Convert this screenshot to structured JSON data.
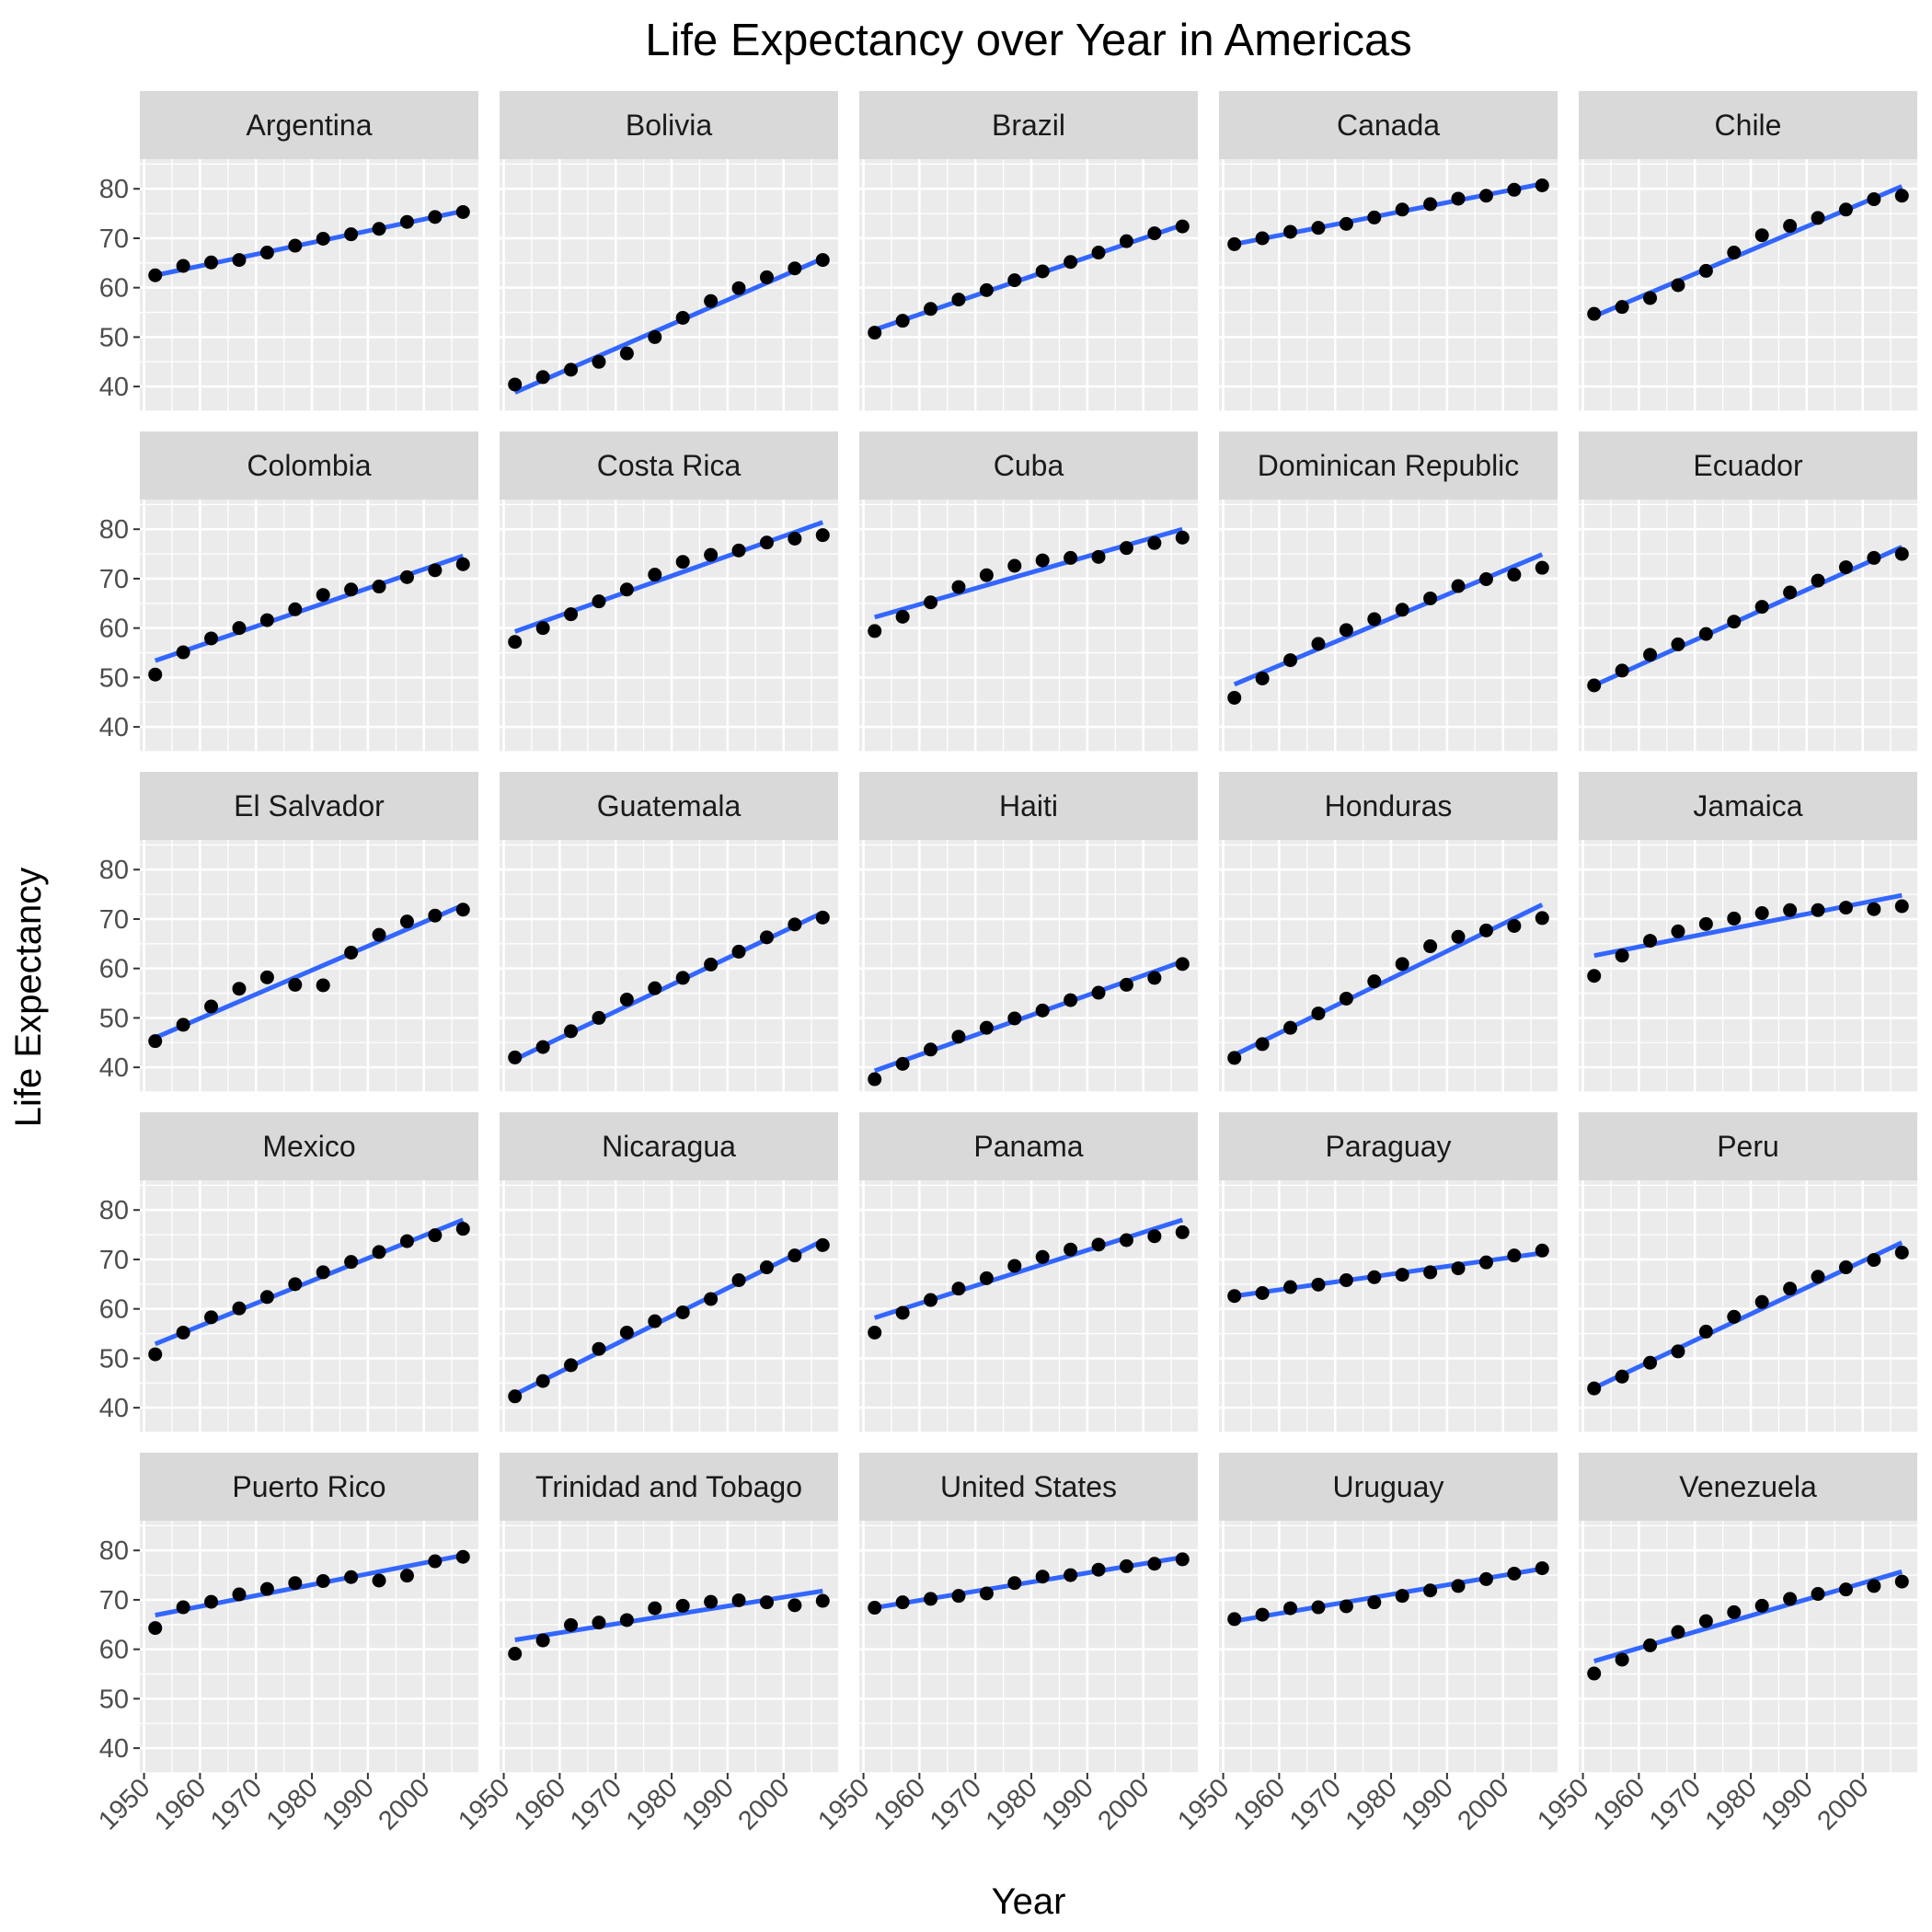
{
  "chart_data": {
    "type": "scatter",
    "title": "Life Expectancy over Year in Americas",
    "xlabel": "Year",
    "ylabel": "Life Expectancy",
    "x": [
      1952,
      1957,
      1962,
      1967,
      1972,
      1977,
      1982,
      1987,
      1992,
      1997,
      2002,
      2007
    ],
    "xlim": [
      1949.25,
      2009.75
    ],
    "ylim": [
      35,
      86
    ],
    "xticks": [
      1950,
      1960,
      1970,
      1980,
      1990,
      2000
    ],
    "yticks": [
      40,
      50,
      60,
      70,
      80
    ],
    "grid": true,
    "trend_line": "linear fit",
    "colors": {
      "points": "#000000",
      "trend": "#3366ff",
      "panel_bg": "#ebebeb",
      "strip_bg": "#d9d9d9",
      "grid": "#ffffff"
    },
    "facets": [
      {
        "name": "Argentina",
        "values": [
          62.5,
          64.4,
          65.1,
          65.6,
          67.1,
          68.5,
          69.9,
          70.8,
          71.9,
          73.3,
          74.3,
          75.3
        ],
        "trend": [
          62.5,
          75.5
        ]
      },
      {
        "name": "Bolivia",
        "values": [
          40.4,
          41.9,
          43.4,
          45.0,
          46.7,
          50.0,
          53.9,
          57.3,
          59.9,
          62.1,
          63.9,
          65.6
        ],
        "trend": [
          38.8,
          65.9
        ]
      },
      {
        "name": "Brazil",
        "values": [
          50.9,
          53.3,
          55.7,
          57.6,
          59.5,
          61.5,
          63.3,
          65.2,
          67.1,
          69.4,
          71.0,
          72.4
        ],
        "trend": [
          51.5,
          72.7
        ]
      },
      {
        "name": "Canada",
        "values": [
          68.8,
          70.0,
          71.3,
          72.1,
          72.9,
          74.2,
          75.8,
          76.9,
          78.0,
          78.6,
          79.8,
          80.7
        ],
        "trend": [
          68.8,
          81.0
        ]
      },
      {
        "name": "Chile",
        "values": [
          54.7,
          56.1,
          57.9,
          60.5,
          63.4,
          67.1,
          70.6,
          72.5,
          74.1,
          75.8,
          77.9,
          78.6
        ],
        "trend": [
          54.2,
          80.5
        ]
      },
      {
        "name": "Colombia",
        "values": [
          50.6,
          55.1,
          57.9,
          60.0,
          61.6,
          63.8,
          66.7,
          67.8,
          68.4,
          70.3,
          71.7,
          72.9
        ],
        "trend": [
          53.4,
          74.6
        ]
      },
      {
        "name": "Costa Rica",
        "values": [
          57.2,
          60.0,
          62.8,
          65.4,
          67.8,
          70.8,
          73.4,
          74.8,
          75.7,
          77.3,
          78.1,
          78.8
        ],
        "trend": [
          59.3,
          81.4
        ]
      },
      {
        "name": "Cuba",
        "values": [
          59.4,
          62.3,
          65.2,
          68.3,
          70.7,
          72.6,
          73.7,
          74.2,
          74.4,
          76.2,
          77.2,
          78.3
        ],
        "trend": [
          62.2,
          80.0
        ]
      },
      {
        "name": "Dominican Republic",
        "values": [
          45.9,
          49.8,
          53.5,
          56.8,
          59.6,
          61.8,
          63.7,
          66.0,
          68.5,
          69.9,
          70.8,
          72.2
        ],
        "trend": [
          48.6,
          74.9
        ]
      },
      {
        "name": "Ecuador",
        "values": [
          48.4,
          51.4,
          54.6,
          56.7,
          58.8,
          61.3,
          64.3,
          67.2,
          69.6,
          72.3,
          74.2,
          75.0
        ],
        "trend": [
          48.4,
          76.4
        ]
      },
      {
        "name": "El Salvador",
        "values": [
          45.3,
          48.6,
          52.3,
          55.9,
          58.2,
          56.7,
          56.6,
          63.2,
          66.8,
          69.5,
          70.7,
          71.9
        ],
        "trend": [
          46.0,
          72.8
        ]
      },
      {
        "name": "Guatemala",
        "values": [
          42.0,
          44.1,
          47.3,
          50.0,
          53.7,
          56.0,
          58.1,
          60.8,
          63.4,
          66.3,
          68.9,
          70.3
        ],
        "trend": [
          41.6,
          71.3
        ]
      },
      {
        "name": "Haiti",
        "values": [
          37.6,
          40.7,
          43.6,
          46.2,
          48.0,
          49.9,
          51.5,
          53.6,
          55.1,
          56.7,
          58.1,
          60.9
        ],
        "trend": [
          39.3,
          61.4
        ]
      },
      {
        "name": "Honduras",
        "values": [
          41.9,
          44.7,
          48.0,
          50.9,
          53.9,
          57.4,
          60.9,
          64.5,
          66.4,
          67.7,
          68.6,
          70.2
        ],
        "trend": [
          42.5,
          72.9
        ]
      },
      {
        "name": "Jamaica",
        "values": [
          58.5,
          62.6,
          65.6,
          67.5,
          69.0,
          70.1,
          71.2,
          71.8,
          71.8,
          72.3,
          72.0,
          72.6
        ],
        "trend": [
          62.6,
          74.8
        ]
      },
      {
        "name": "Mexico",
        "values": [
          50.8,
          55.2,
          58.3,
          60.1,
          62.4,
          65.0,
          67.4,
          69.5,
          71.5,
          73.7,
          74.9,
          76.2
        ],
        "trend": [
          52.9,
          78.0
        ]
      },
      {
        "name": "Nicaragua",
        "values": [
          42.3,
          45.4,
          48.6,
          51.9,
          55.2,
          57.5,
          59.3,
          62.0,
          65.8,
          68.4,
          70.8,
          72.9
        ],
        "trend": [
          42.7,
          73.8
        ]
      },
      {
        "name": "Panama",
        "values": [
          55.2,
          59.2,
          61.8,
          64.1,
          66.2,
          68.7,
          70.5,
          72.0,
          73.0,
          73.9,
          74.7,
          75.5
        ],
        "trend": [
          58.2,
          78.0
        ]
      },
      {
        "name": "Paraguay",
        "values": [
          62.6,
          63.2,
          64.4,
          64.9,
          65.8,
          66.4,
          66.9,
          67.4,
          68.2,
          69.4,
          70.8,
          71.8
        ],
        "trend": [
          62.6,
          71.3
        ]
      },
      {
        "name": "Peru",
        "values": [
          43.9,
          46.3,
          49.1,
          51.4,
          55.4,
          58.4,
          61.4,
          64.1,
          66.5,
          68.4,
          69.9,
          71.4
        ],
        "trend": [
          44.0,
          73.4
        ]
      },
      {
        "name": "Puerto Rico",
        "values": [
          64.3,
          68.5,
          69.6,
          71.1,
          72.2,
          73.4,
          73.8,
          74.6,
          73.9,
          74.9,
          77.8,
          78.7
        ],
        "trend": [
          66.9,
          79.0
        ]
      },
      {
        "name": "Trinidad and Tobago",
        "values": [
          59.1,
          61.8,
          64.9,
          65.4,
          65.9,
          68.3,
          68.8,
          69.6,
          69.9,
          69.5,
          68.9,
          69.8
        ],
        "trend": [
          61.9,
          71.8
        ]
      },
      {
        "name": "United States",
        "values": [
          68.4,
          69.5,
          70.2,
          70.8,
          71.3,
          73.4,
          74.7,
          75.0,
          76.1,
          76.8,
          77.3,
          78.2
        ],
        "trend": [
          68.4,
          78.6
        ]
      },
      {
        "name": "Uruguay",
        "values": [
          66.1,
          67.0,
          68.3,
          68.5,
          68.7,
          69.5,
          70.8,
          71.9,
          72.8,
          74.2,
          75.3,
          76.4
        ],
        "trend": [
          65.7,
          76.3
        ]
      },
      {
        "name": "Venezuela",
        "values": [
          55.1,
          57.9,
          60.8,
          63.5,
          65.7,
          67.5,
          68.8,
          70.2,
          71.2,
          72.1,
          72.8,
          73.7
        ],
        "trend": [
          57.6,
          75.7
        ]
      }
    ]
  }
}
